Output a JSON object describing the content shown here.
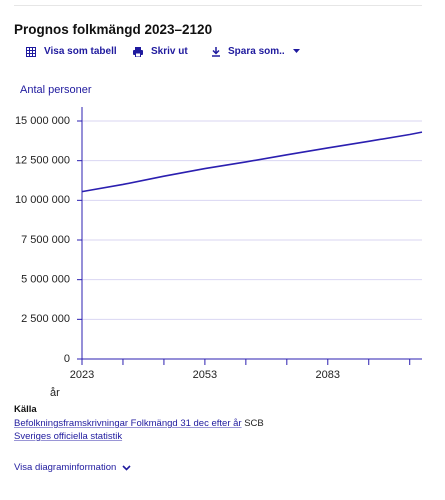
{
  "header": {
    "title": "Prognos folkmängd 2023–2120"
  },
  "toolbar": {
    "table": "Visa som tabell",
    "print": "Skriv ut",
    "save": "Spara som.."
  },
  "chart_data": {
    "type": "line",
    "ylabel": "Antal personer",
    "xlabel": "år",
    "color": "#2b1fb0",
    "x": [
      2023,
      2033,
      2043,
      2053,
      2063,
      2073,
      2083,
      2093,
      2103,
      2106
    ],
    "values": [
      10550000,
      11000000,
      11520000,
      12000000,
      12420000,
      12870000,
      13300000,
      13720000,
      14150000,
      14300000
    ],
    "xlim": [
      2023,
      2106
    ],
    "xticks": [
      2023,
      2053,
      2083
    ],
    "xminorticks": [
      2033,
      2043,
      2063,
      2073,
      2093,
      2103
    ],
    "ylim": [
      0,
      15000000
    ],
    "yticks": [
      0,
      {
        "value": 2500000,
        "label": "2 500 000"
      },
      {
        "value": 5000000,
        "label": "5 000 000"
      },
      {
        "value": 7500000,
        "label": "7 500 000"
      },
      {
        "value": 10000000,
        "label": "10 000 000"
      },
      {
        "value": 12500000,
        "label": "12 500 000"
      },
      {
        "value": 15000000,
        "label": "15 000 000"
      }
    ],
    "grid": true
  },
  "source": {
    "heading": "Källa",
    "link": "Befolkningsframskrivningar Folkmängd 31 dec efter år",
    "publisher": "SCB",
    "official": "Sveriges officiella statistik"
  },
  "footer": {
    "more": "Visa diagraminformation"
  }
}
